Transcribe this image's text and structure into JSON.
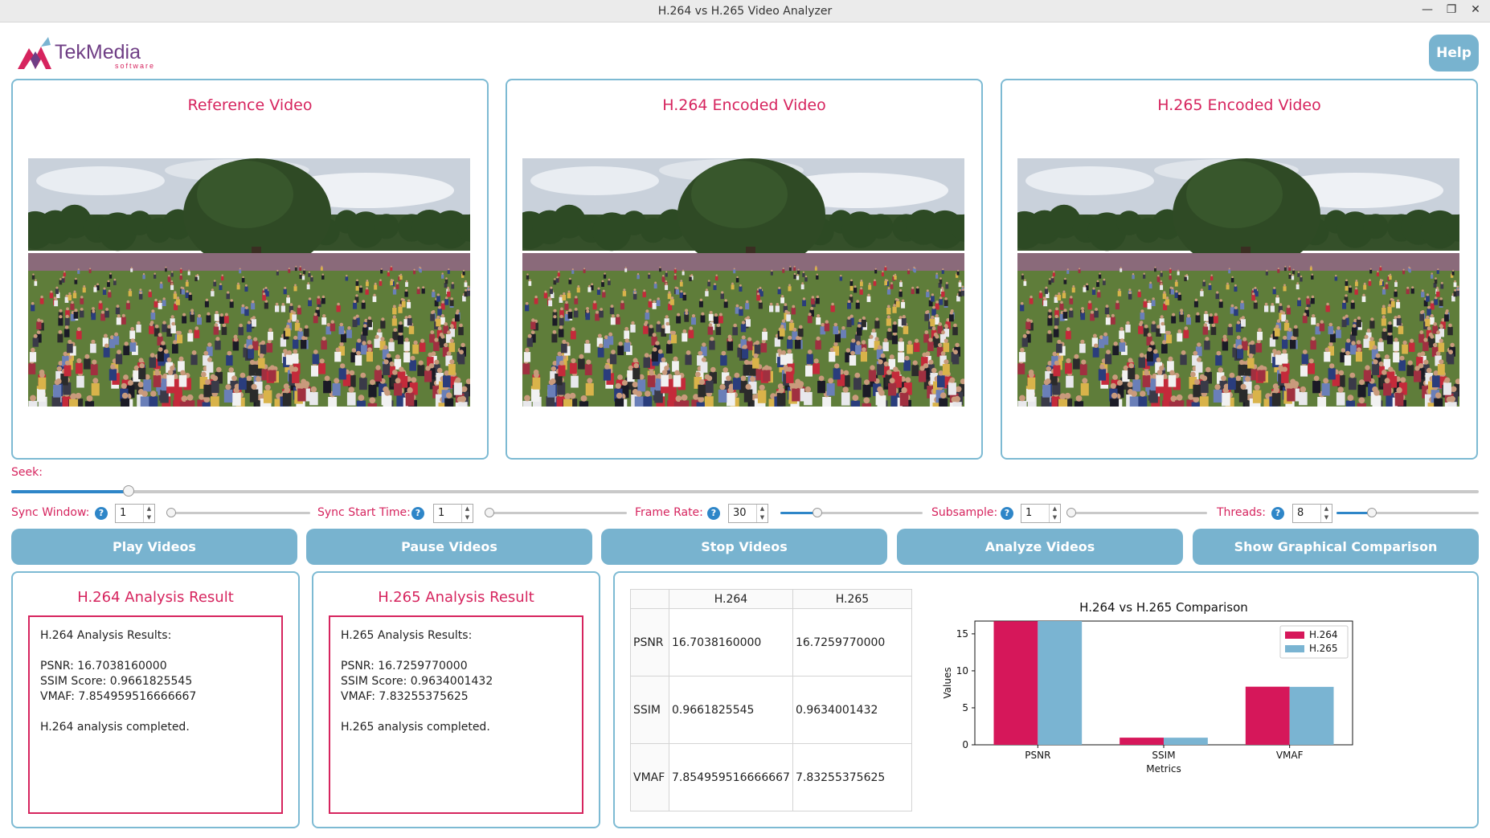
{
  "window": {
    "title": "H.264 vs H.265 Video Analyzer"
  },
  "logo": {
    "brand": "TekMedia",
    "tagline": "software"
  },
  "help_label": "Help",
  "videos": [
    {
      "title": "Reference Video"
    },
    {
      "title": "H.264 Encoded Video"
    },
    {
      "title": "H.265 Encoded Video"
    }
  ],
  "seek": {
    "label": "Seek:",
    "position": 0.08
  },
  "controls": [
    {
      "label": "Sync Window:",
      "value": "1",
      "slider": 0.0
    },
    {
      "label": "Sync Start Time:",
      "value": "1",
      "slider": 0.0
    },
    {
      "label": "Frame Rate:",
      "value": "30",
      "slider": 0.26
    },
    {
      "label": "Subsample:",
      "value": "1",
      "slider": 0.0
    },
    {
      "label": "Threads:",
      "value": "8",
      "slider": 0.25
    }
  ],
  "help_icon": "?",
  "buttons": {
    "play": "Play Videos",
    "pause": "Pause Videos",
    "stop": "Stop Videos",
    "analyze": "Analyze Videos",
    "graph": "Show Graphical Comparison"
  },
  "h264_result": {
    "title": "H.264 Analysis Result",
    "lines": [
      "H.264 Analysis Results:",
      "",
      "PSNR: 16.7038160000",
      "SSIM Score: 0.9661825545",
      "VMAF: 7.854959516666667",
      "",
      "H.264 analysis completed."
    ]
  },
  "h265_result": {
    "title": "H.265 Analysis Result",
    "lines": [
      "H.265 Analysis Results:",
      "",
      "PSNR: 16.7259770000",
      "SSIM Score: 0.9634001432",
      "VMAF: 7.83255375625",
      "",
      "H.265 analysis completed."
    ]
  },
  "metrics_table": {
    "headers": [
      "",
      "H.264",
      "H.265"
    ],
    "rows": [
      [
        "PSNR",
        "16.7038160000",
        "16.7259770000"
      ],
      [
        "SSIM",
        "0.9661825545",
        "0.9634001432"
      ],
      [
        "VMAF",
        "7.854959516666667",
        "7.83255375625"
      ]
    ]
  },
  "chart_data": {
    "type": "bar",
    "title": "H.264 vs H.265 Comparison",
    "xlabel": "Metrics",
    "ylabel": "Values",
    "categories": [
      "PSNR",
      "SSIM",
      "VMAF"
    ],
    "series": [
      {
        "name": "H.264",
        "color": "#d6175a",
        "values": [
          16.703816,
          0.9661825545,
          7.854959516666667
        ]
      },
      {
        "name": "H.265",
        "color": "#7ab4d2",
        "values": [
          16.725977,
          0.9634001432,
          7.83255375625
        ]
      }
    ],
    "ylim": [
      0,
      16.725977
    ],
    "yticks": [
      0,
      5,
      10,
      15
    ],
    "legend": "top-right",
    "grid": false
  },
  "colors": {
    "accent": "#d6245e",
    "button": "#78b3cf",
    "border": "#7dbad3",
    "slider": "#2e86c8"
  }
}
